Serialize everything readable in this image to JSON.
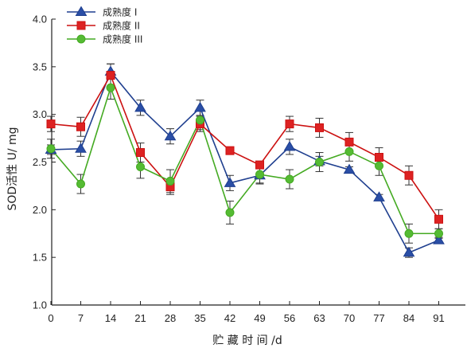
{
  "chart_data": {
    "type": "line",
    "title": "",
    "xlabel": "贮 藏 时 间 /d",
    "ylabel": "SOD活性 U/ mg",
    "x": [
      0,
      7,
      14,
      21,
      28,
      35,
      42,
      49,
      56,
      63,
      70,
      77,
      84,
      91
    ],
    "x_tick_labels": [
      "0",
      "7",
      "14",
      "21",
      "28",
      "35",
      "42",
      "49",
      "56",
      "63",
      "70",
      "77",
      "84",
      "91"
    ],
    "ylim": [
      1.0,
      4.0
    ],
    "y_ticks": [
      1.0,
      1.5,
      2.0,
      2.5,
      3.0,
      3.5,
      4.0
    ],
    "y_tick_labels": [
      "1.0",
      "1.5",
      "2.0",
      "2.5",
      "3.0",
      "3.5",
      "4.0"
    ],
    "grid": false,
    "legend_position": "top-left",
    "error_bar_color": "#333333",
    "series": [
      {
        "name": "成熟度 I",
        "marker": "triangle",
        "color": "#1f3f8f",
        "marker_color": "#2a4ea6",
        "values": [
          2.63,
          2.64,
          3.45,
          3.07,
          2.77,
          3.07,
          2.28,
          2.36,
          2.66,
          2.51,
          2.42,
          2.13,
          1.55,
          1.68
        ],
        "errors": [
          0.05,
          0.08,
          0.08,
          0.08,
          0.08,
          0.08,
          0.08,
          0.08,
          0.08,
          0.05,
          0.03,
          0.03,
          0.05,
          0.03
        ]
      },
      {
        "name": "成熟度 II",
        "marker": "square",
        "color": "#cc1111",
        "marker_color": "#dd2222",
        "values": [
          2.9,
          2.87,
          3.41,
          2.6,
          2.24,
          2.9,
          2.62,
          2.47,
          2.9,
          2.86,
          2.71,
          2.55,
          2.36,
          1.9
        ],
        "errors": [
          0.08,
          0.1,
          0.12,
          0.1,
          0.08,
          0.08,
          0.03,
          0.03,
          0.08,
          0.1,
          0.1,
          0.1,
          0.1,
          0.1
        ]
      },
      {
        "name": "成熟度 III",
        "marker": "circle",
        "color": "#44aa22",
        "marker_color": "#55bb33",
        "values": [
          2.64,
          2.27,
          3.28,
          2.45,
          2.3,
          2.94,
          1.97,
          2.37,
          2.32,
          2.5,
          2.61,
          2.46,
          1.75,
          1.75
        ],
        "errors": [
          0.1,
          0.1,
          0.12,
          0.12,
          0.12,
          0.1,
          0.12,
          0.1,
          0.1,
          0.1,
          0.1,
          0.1,
          0.1,
          0.05
        ]
      }
    ]
  }
}
